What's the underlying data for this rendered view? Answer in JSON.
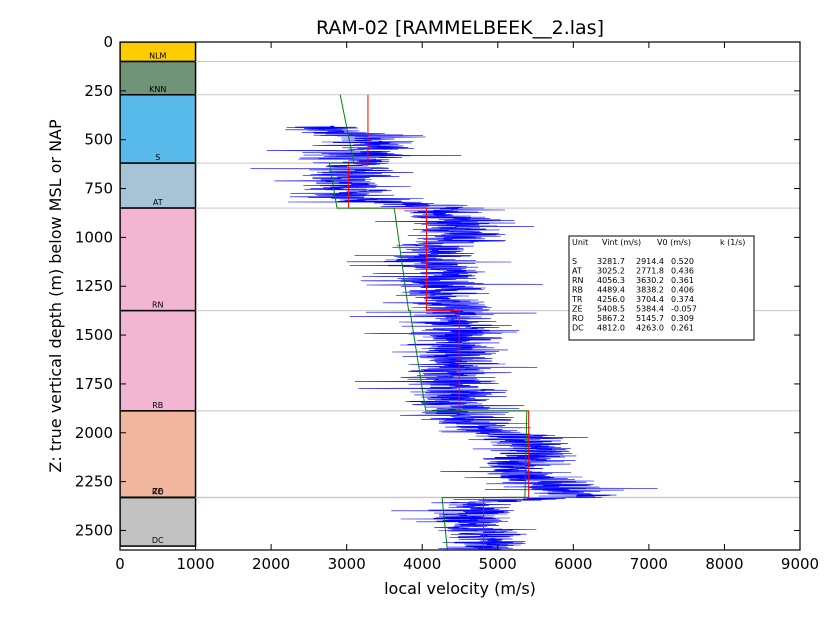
{
  "chart_data": {
    "type": "line",
    "title": "RAM-02 [RAMMELBEEK__2.las]",
    "xlabel": "local velocity (m/s)",
    "ylabel": "Z: true vertical depth (m) below MSL or NAP",
    "xlim": [
      0,
      9000
    ],
    "ylim": [
      2600,
      0
    ],
    "xticks": [
      0,
      1000,
      2000,
      3000,
      4000,
      5000,
      6000,
      7000,
      8000,
      9000
    ],
    "yticks": [
      0,
      250,
      500,
      750,
      1000,
      1250,
      1500,
      1750,
      2000,
      2250,
      2500
    ],
    "grid": "horizontal lines at unit tops",
    "units": [
      {
        "name": "NLM",
        "top": 0,
        "base": 100,
        "color": "#ffcc00"
      },
      {
        "name": "KNN",
        "top": 100,
        "base": 270,
        "color": "#6f9478"
      },
      {
        "name": "S",
        "top": 270,
        "base": 620,
        "color": "#57baeb"
      },
      {
        "name": "AT",
        "top": 620,
        "base": 850,
        "color": "#a6c4d6"
      },
      {
        "name": "RN",
        "top": 850,
        "base": 1375,
        "color": "#f2b6d2"
      },
      {
        "name": "RB",
        "top": 1375,
        "base": 1888,
        "color": "#f2b6d2"
      },
      {
        "name": "ZE",
        "top": 1888,
        "base": 2330,
        "color": "#f2b59e"
      },
      {
        "name": "RO",
        "top": 2330,
        "base": 2332,
        "color": "#f2b59e"
      },
      {
        "name": "DC",
        "top": 2332,
        "base": 2580,
        "color": "#c2c2c2"
      }
    ],
    "interval_velocity_line": {
      "color": "#ff0000",
      "segments": [
        {
          "unit": "S",
          "top": 270,
          "base": 620,
          "vint": 3281.7
        },
        {
          "unit": "AT",
          "top": 620,
          "base": 850,
          "vint": 3025.2
        },
        {
          "unit": "RN",
          "top": 850,
          "base": 1375,
          "vint": 4056.3
        },
        {
          "unit": "RB",
          "top": 1375,
          "base": 1888,
          "vint": 4489.4
        },
        {
          "unit": "ZE",
          "top": 1888,
          "base": 2330,
          "vint": 5408.5
        },
        {
          "unit": "DC",
          "top": 2332,
          "base": 2600,
          "vint": 4812.0
        }
      ]
    },
    "v0k_line": {
      "color": "#008000",
      "segments": [
        {
          "unit": "S",
          "top": 270,
          "base": 620,
          "v0": 2914.4,
          "k": 0.52
        },
        {
          "unit": "AT",
          "top": 620,
          "base": 850,
          "v0": 2771.8,
          "k": 0.436
        },
        {
          "unit": "RN",
          "top": 850,
          "base": 1375,
          "v0": 3630.2,
          "k": 0.361
        },
        {
          "unit": "RB",
          "top": 1375,
          "base": 1888,
          "v0": 3838.2,
          "k": 0.406
        },
        {
          "unit": "ZE",
          "top": 1888,
          "base": 2330,
          "v0": 5384.4,
          "k": -0.057
        },
        {
          "unit": "DC",
          "top": 2332,
          "base": 2600,
          "v0": 4263.0,
          "k": 0.261
        }
      ]
    },
    "velocity_log": {
      "color": "#0000ff",
      "depth_range": [
        430,
        2600
      ],
      "trend": [
        [
          430,
          2600
        ],
        [
          470,
          3000
        ],
        [
          520,
          3400
        ],
        [
          560,
          3300
        ],
        [
          600,
          3200
        ],
        [
          650,
          3050
        ],
        [
          700,
          3000
        ],
        [
          750,
          3050
        ],
        [
          800,
          3100
        ],
        [
          850,
          4200
        ],
        [
          900,
          4400
        ],
        [
          950,
          4500
        ],
        [
          1000,
          4550
        ],
        [
          1050,
          4150
        ],
        [
          1100,
          4100
        ],
        [
          1150,
          4200
        ],
        [
          1200,
          4250
        ],
        [
          1250,
          4300
        ],
        [
          1300,
          4300
        ],
        [
          1350,
          4350
        ],
        [
          1400,
          4400
        ],
        [
          1450,
          4500
        ],
        [
          1500,
          4400
        ],
        [
          1550,
          4500
        ],
        [
          1600,
          4450
        ],
        [
          1650,
          4500
        ],
        [
          1700,
          4450
        ],
        [
          1750,
          4400
        ],
        [
          1800,
          4450
        ],
        [
          1850,
          4450
        ],
        [
          1890,
          4500
        ],
        [
          1950,
          4550
        ],
        [
          2000,
          5000
        ],
        [
          2050,
          5600
        ],
        [
          2100,
          5500
        ],
        [
          2150,
          5300
        ],
        [
          2200,
          5200
        ],
        [
          2250,
          5700
        ],
        [
          2300,
          6000
        ],
        [
          2330,
          6000
        ],
        [
          2360,
          4600
        ],
        [
          2400,
          4700
        ],
        [
          2450,
          4650
        ],
        [
          2500,
          4700
        ],
        [
          2550,
          4750
        ],
        [
          2600,
          4800
        ]
      ]
    },
    "table": {
      "header": [
        "Unit",
        "Vint (m/s)",
        "V0 (m/s)",
        "k (1/s)"
      ],
      "rows": [
        [
          "S",
          "3281.7",
          "2914.4",
          "0.520"
        ],
        [
          "AT",
          "3025.2",
          "2771.8",
          "0.436"
        ],
        [
          "RN",
          "4056.3",
          "3630.2",
          "0.361"
        ],
        [
          "RB",
          "4489.4",
          "3838.2",
          "0.406"
        ],
        [
          "TR",
          "4256.0",
          "3704.4",
          "0.374"
        ],
        [
          "ZE",
          "5408.5",
          "5384.4",
          "-0.057"
        ],
        [
          "RO",
          "5867.2",
          "5145.7",
          "0.309"
        ],
        [
          "DC",
          "4812.0",
          "4263.0",
          "0.261"
        ]
      ]
    }
  }
}
